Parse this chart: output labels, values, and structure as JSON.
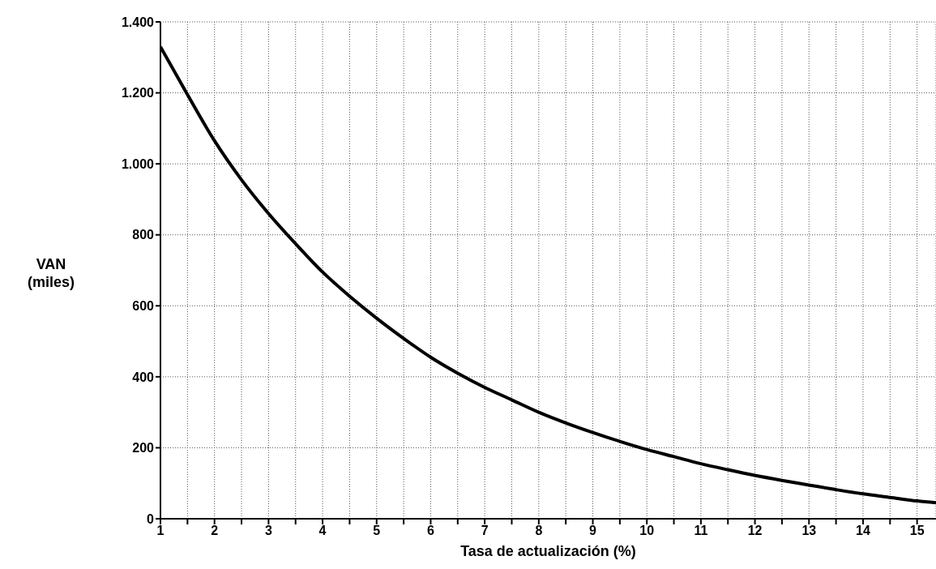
{
  "chart_data": {
    "type": "line",
    "xlabel": "Tasa de actualización (%)",
    "ylabel": "VAN (miles)",
    "x": [
      1,
      1.5,
      2,
      2.5,
      3,
      3.5,
      4,
      4.5,
      5,
      5.5,
      6,
      6.5,
      7,
      7.5,
      8,
      8.5,
      9,
      9.5,
      10,
      10.5,
      11,
      11.5,
      12,
      12.5,
      13,
      13.5,
      14,
      14.5,
      15,
      15.35
    ],
    "series": [
      {
        "color": "#000000",
        "values": [
          1330,
          1195,
          1065,
          955,
          860,
          775,
          695,
          627,
          565,
          508,
          455,
          410,
          370,
          335,
          300,
          270,
          243,
          218,
          195,
          175,
          155,
          138,
          122,
          108,
          95,
          82,
          70,
          60,
          50,
          45
        ]
      }
    ],
    "xlim": [
      1,
      15.35
    ],
    "xticks": [
      1,
      {
        "value": 1.5,
        "label": null
      },
      2,
      {
        "value": 2.5,
        "label": null
      },
      3,
      {
        "value": 3.5,
        "label": null
      },
      4,
      {
        "value": 4.5,
        "label": null
      },
      5,
      {
        "value": 5.5,
        "label": null
      },
      6,
      {
        "value": 6.5,
        "label": null
      },
      7,
      {
        "value": 7.5,
        "label": null
      },
      8,
      {
        "value": 8.5,
        "label": null
      },
      9,
      {
        "value": 9.5,
        "label": null
      },
      10,
      {
        "value": 10.5,
        "label": null
      },
      11,
      {
        "value": 11.5,
        "label": null
      },
      12,
      {
        "value": 12.5,
        "label": null
      },
      13,
      {
        "value": 13.5,
        "label": null
      },
      14,
      {
        "value": 14.5,
        "label": null
      },
      15
    ],
    "ylim": [
      0,
      1400
    ],
    "yticks": [
      0,
      200,
      400,
      600,
      800,
      {
        "value": 1000,
        "label": "1.000"
      },
      {
        "value": 1200,
        "label": "1.200"
      },
      {
        "value": 1400,
        "label": "1.400"
      }
    ],
    "grid": true,
    "marker": "none",
    "line_style": "solid",
    "legend": false
  }
}
